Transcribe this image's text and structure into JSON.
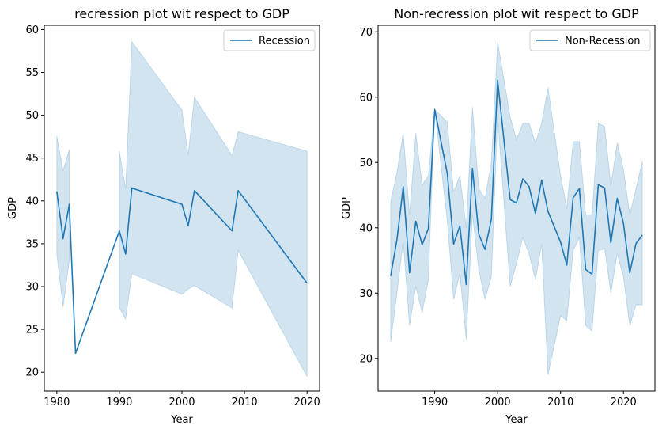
{
  "chart_data": [
    {
      "type": "line",
      "title": "recression plot wit respect to GDP",
      "xlabel": "Year",
      "ylabel": "GDP",
      "xlim": [
        1978.0,
        2022.0
      ],
      "ylim": [
        17.8,
        60.5
      ],
      "xticks": [
        1980,
        1990,
        2000,
        2010,
        2020
      ],
      "yticks": [
        20,
        25,
        30,
        35,
        40,
        45,
        50,
        55,
        60
      ],
      "legend_position": "top-right",
      "grid": false,
      "line_color": "#1f77b4",
      "band_color": "#1f77b4",
      "series": [
        {
          "name": "Recession",
          "x": [
            1980,
            1981,
            1982,
            1983,
            1990,
            1991,
            1992,
            2000,
            2001,
            2002,
            2008,
            2009,
            2020
          ],
          "y": [
            41.1,
            35.6,
            39.6,
            22.2,
            36.5,
            33.8,
            41.5,
            39.6,
            37.1,
            41.2,
            36.5,
            41.2,
            30.4
          ],
          "upper": [
            47.6,
            43.5,
            46.0,
            null,
            45.8,
            41.4,
            58.6,
            50.6,
            45.4,
            52.1,
            45.3,
            48.1,
            45.8
          ],
          "lower": [
            33.8,
            27.6,
            33.0,
            null,
            27.5,
            26.2,
            31.5,
            29.1,
            29.7,
            30.1,
            27.5,
            34.2,
            19.5
          ]
        }
      ]
    },
    {
      "type": "line",
      "title": "Non-recression plot wit respect to GDP",
      "xlabel": "Year",
      "ylabel": "GDP",
      "xlim": [
        1981.0,
        2025.0
      ],
      "ylim": [
        15.0,
        71.0
      ],
      "xticks": [
        1990,
        2000,
        2010,
        2020
      ],
      "yticks": [
        20,
        30,
        40,
        50,
        60,
        70
      ],
      "legend_position": "top-right",
      "grid": false,
      "line_color": "#1f77b4",
      "band_color": "#1f77b4",
      "series": [
        {
          "name": "Non-Recession",
          "x": [
            1983,
            1984,
            1985,
            1986,
            1987,
            1988,
            1989,
            1990,
            1992,
            1993,
            1994,
            1995,
            1996,
            1997,
            1998,
            1999,
            2000,
            2002,
            2003,
            2004,
            2005,
            2006,
            2007,
            2008,
            2010,
            2011,
            2012,
            2013,
            2014,
            2015,
            2016,
            2017,
            2018,
            2019,
            2020,
            2021,
            2022,
            2023
          ],
          "y": [
            32.6,
            38.2,
            46.3,
            33.1,
            41.0,
            37.4,
            39.9,
            58.1,
            48.3,
            37.5,
            40.3,
            31.3,
            49.1,
            39.0,
            36.7,
            41.3,
            62.6,
            44.3,
            43.8,
            47.5,
            46.3,
            42.2,
            47.3,
            42.5,
            37.8,
            34.3,
            44.6,
            46.0,
            33.6,
            32.9,
            46.6,
            46.1,
            37.7,
            44.5,
            40.7,
            33.1,
            37.6,
            38.9
          ],
          "upper": [
            44.0,
            48.5,
            54.5,
            42.0,
            54.5,
            46.5,
            48.0,
            58.1,
            56.2,
            45.5,
            48.0,
            40.0,
            58.5,
            46.0,
            44.5,
            50.0,
            68.5,
            57.0,
            53.5,
            56.0,
            56.0,
            53.0,
            56.0,
            61.5,
            48.0,
            43.0,
            53.2,
            53.2,
            42.0,
            42.0,
            56.0,
            55.5,
            46.5,
            53.0,
            49.0,
            42.0,
            46.0,
            50.2
          ],
          "lower": [
            22.5,
            30.0,
            38.0,
            25.0,
            31.0,
            27.0,
            32.0,
            58.1,
            41.0,
            29.0,
            33.0,
            22.8,
            42.0,
            33.5,
            29.0,
            32.5,
            57.0,
            31.0,
            34.5,
            38.5,
            36.0,
            32.0,
            37.5,
            17.5,
            26.5,
            25.8,
            36.5,
            38.5,
            25.0,
            24.2,
            36.5,
            36.8,
            30.0,
            36.0,
            32.5,
            25.0,
            28.2,
            28.2
          ]
        }
      ]
    }
  ]
}
